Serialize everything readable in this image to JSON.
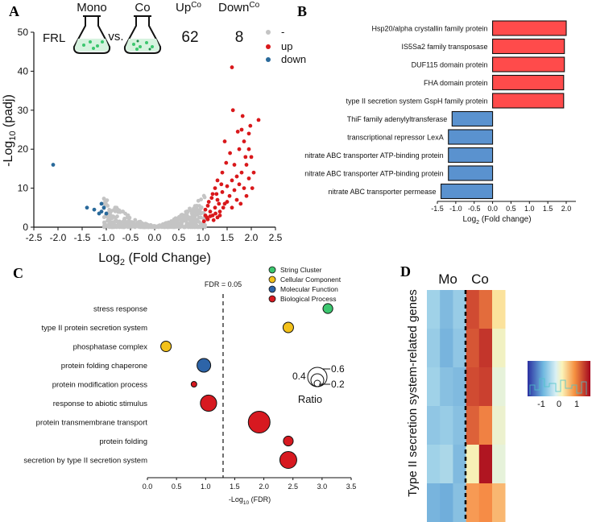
{
  "panel_labels": [
    "A",
    "B",
    "C",
    "D"
  ],
  "chart_data": [
    {
      "panel": "A",
      "type": "scatter",
      "xlabel_pre": "Log",
      "xlabel_sub": "2",
      "xlabel_post": " (Fold Change)",
      "ylabel_pre": "-Log",
      "ylabel_sub": "10",
      "ylabel_post": " (padj)",
      "xlim": [
        -2.5,
        2.5
      ],
      "ylim": [
        0,
        50
      ],
      "xticks": [
        -2.5,
        -2.0,
        -1.5,
        -1.0,
        -0.5,
        0.0,
        0.5,
        1.0,
        1.5,
        2.0,
        2.5
      ],
      "yticks": [
        0,
        10,
        20,
        30,
        40,
        50
      ],
      "header": {
        "condition": "FRL",
        "mono_label": "Mono",
        "vs_label": "vs.",
        "co_label": "Co",
        "up_label": "Up",
        "up_sup": "Co",
        "up_count": "62",
        "down_label": "Down",
        "down_sup": "Co",
        "down_count": "8"
      },
      "legend": [
        {
          "name": "-",
          "color": "#c4c4c4"
        },
        {
          "name": "up",
          "color": "#d9181b"
        },
        {
          "name": "down",
          "color": "#2a6a9b"
        }
      ],
      "up_points": [
        [
          1.6,
          41
        ],
        [
          2.15,
          27.5
        ],
        [
          1.05,
          3
        ],
        [
          1.1,
          2
        ],
        [
          1.15,
          4
        ],
        [
          1.2,
          3
        ],
        [
          1.25,
          5
        ],
        [
          1.3,
          2.5
        ],
        [
          1.35,
          4
        ],
        [
          1.1,
          5.5
        ],
        [
          1.2,
          8.5
        ],
        [
          1.3,
          7
        ],
        [
          1.4,
          9
        ],
        [
          1.45,
          6
        ],
        [
          1.5,
          10.5
        ],
        [
          1.55,
          8
        ],
        [
          1.6,
          12
        ],
        [
          1.65,
          9.5
        ],
        [
          1.7,
          13
        ],
        [
          1.75,
          11
        ],
        [
          1.8,
          14
        ],
        [
          1.85,
          10
        ],
        [
          1.9,
          16
        ],
        [
          1.95,
          12.5
        ],
        [
          2.0,
          18
        ],
        [
          1.65,
          16
        ],
        [
          1.75,
          20
        ],
        [
          1.85,
          22
        ],
        [
          1.95,
          24
        ],
        [
          1.8,
          25
        ],
        [
          1.3,
          12
        ],
        [
          1.4,
          14
        ],
        [
          1.25,
          10
        ],
        [
          1.05,
          4.5
        ],
        [
          1.12,
          6.5
        ],
        [
          1.18,
          7.5
        ],
        [
          1.28,
          8.5
        ],
        [
          1.5,
          6.5
        ],
        [
          1.6,
          5
        ],
        [
          1.7,
          7
        ],
        [
          1.9,
          8
        ],
        [
          2.05,
          14
        ],
        [
          1.95,
          20
        ],
        [
          1.35,
          3
        ],
        [
          1.42,
          5
        ],
        [
          1.08,
          2.5
        ],
        [
          1.22,
          1.8
        ],
        [
          1.02,
          1.5
        ],
        [
          1.15,
          2.8
        ],
        [
          1.26,
          3.5
        ],
        [
          1.33,
          6
        ],
        [
          1.38,
          11
        ],
        [
          1.48,
          16.5
        ],
        [
          1.56,
          19
        ],
        [
          1.72,
          24.5
        ],
        [
          1.82,
          28.5
        ],
        [
          1.98,
          26
        ],
        [
          1.62,
          30
        ],
        [
          1.45,
          22
        ],
        [
          1.88,
          18
        ],
        [
          1.78,
          6
        ],
        [
          2.02,
          10
        ]
      ],
      "down_points": [
        [
          -2.1,
          16
        ],
        [
          -1.4,
          5
        ],
        [
          -1.25,
          4.5
        ],
        [
          -1.15,
          3.5
        ],
        [
          -1.1,
          4
        ],
        [
          -1.05,
          5
        ],
        [
          -1.0,
          3.5
        ],
        [
          -1.1,
          6
        ]
      ]
    },
    {
      "panel": "B",
      "type": "bar",
      "orientation": "horizontal",
      "xlabel_pre": "Log",
      "xlabel_sub": "2",
      "xlabel_post": " (Fold change)",
      "xlim": [
        -1.5,
        2.0
      ],
      "xticks": [
        -1.5,
        -1.0,
        -0.5,
        0.0,
        0.5,
        1.0,
        1.5,
        2.0
      ],
      "categories": [
        "Hsp20/alpha crystallin family protein",
        "IS5Sa2 family transposase",
        "DUF115 domain protein",
        "FHA domain protein",
        "type II secretion system GspH family protein",
        "ThiF family adenylyltransferase",
        "transcriptional repressor LexA",
        "nitrate ABC transporter ATP-binding protein",
        "nitrate ABC transporter ATP-binding protein",
        "nitrate ABC transporter permease"
      ],
      "values": [
        2.0,
        1.95,
        1.95,
        1.93,
        1.93,
        -1.1,
        -1.2,
        -1.2,
        -1.2,
        -1.4
      ],
      "colors": {
        "positive": "#ff4b4b",
        "negative": "#5a92cf"
      }
    },
    {
      "panel": "C",
      "type": "scatter",
      "xlabel_pre": "-Log",
      "xlabel_sub": "10",
      "xlabel_post": " (FDR)",
      "xlim": [
        0.0,
        3.5
      ],
      "xticks": [
        0.0,
        0.5,
        1.0,
        1.5,
        2.0,
        2.5,
        3.0,
        3.5
      ],
      "threshold": {
        "x": 1.3,
        "label": "FDR = 0.05"
      },
      "legend": [
        {
          "name": "String Cluster",
          "color": "#3cc76f"
        },
        {
          "name": "Cellular Component",
          "color": "#f3c11a"
        },
        {
          "name": "Molecular Function",
          "color": "#2d64a8"
        },
        {
          "name": "Biological Process",
          "color": "#d71920"
        }
      ],
      "size_legend": {
        "title": "Ratio",
        "values": [
          "0.6",
          "0.4",
          "0.2"
        ]
      },
      "terms": [
        {
          "term": "stress response",
          "x": 3.1,
          "ratio": 0.18,
          "category": "String Cluster"
        },
        {
          "term": "type II protein secretion system",
          "x": 2.42,
          "ratio": 0.2,
          "category": "Cellular Component"
        },
        {
          "term": "phosphatase complex",
          "x": 0.32,
          "ratio": 0.2,
          "category": "Cellular Component"
        },
        {
          "term": "protein folding chaperone",
          "x": 0.97,
          "ratio": 0.3,
          "category": "Molecular Function"
        },
        {
          "term": "protein modification process",
          "x": 0.8,
          "ratio": 0.05,
          "category": "Biological Process"
        },
        {
          "term": "response to abiotic stimulus",
          "x": 1.05,
          "ratio": 0.38,
          "category": "Biological Process"
        },
        {
          "term": "protein transmembrane transport",
          "x": 1.92,
          "ratio": 0.55,
          "category": "Biological Process"
        },
        {
          "term": "protein folding",
          "x": 2.42,
          "ratio": 0.18,
          "category": "Biological Process"
        },
        {
          "term": "secretion by type II secretion system",
          "x": 2.42,
          "ratio": 0.4,
          "category": "Biological Process"
        }
      ]
    },
    {
      "panel": "D",
      "type": "heatmap",
      "ylabel": "Type II secretion system-related genes",
      "group_labels": [
        "Mo",
        "Co"
      ],
      "colorbar_ticks": [
        "-1",
        "0",
        "1"
      ],
      "values": [
        [
          -0.3,
          -0.5,
          -0.35,
          0.9,
          0.75,
          0.3
        ],
        [
          -0.35,
          -0.55,
          -0.4,
          0.85,
          1.0,
          0.15
        ],
        [
          -0.3,
          -0.45,
          -0.5,
          0.9,
          0.95,
          0.05
        ],
        [
          -0.4,
          -0.35,
          -0.45,
          0.8,
          0.65,
          0.1
        ],
        [
          -0.3,
          -0.25,
          -0.5,
          0.2,
          1.15,
          0.05
        ],
        [
          -0.55,
          -0.6,
          -0.45,
          0.55,
          0.6,
          0.45
        ]
      ]
    }
  ]
}
